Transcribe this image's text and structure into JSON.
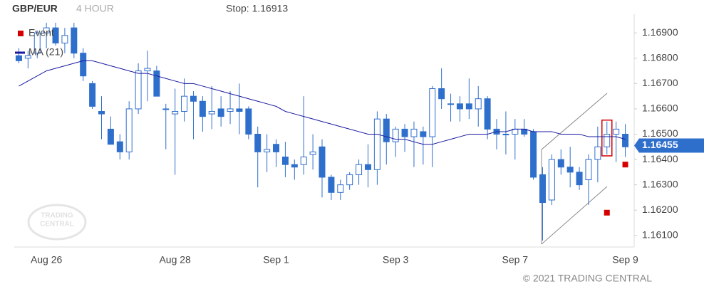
{
  "header": {
    "symbol": "GBP/EUR",
    "period": "4 HOUR",
    "stop": "Stop: 1.16913"
  },
  "footer": "© 2021 TRADING CENTRAL",
  "watermark": [
    "TRADING",
    "CENTRAL"
  ],
  "chart_data": {
    "type": "candlestick",
    "categories": [
      null,
      null,
      null,
      "Aug 26",
      null,
      null,
      null,
      null,
      null,
      null,
      null,
      null,
      null,
      null,
      null,
      null,
      null,
      "Aug 28",
      null,
      null,
      null,
      null,
      null,
      null,
      null,
      null,
      null,
      null,
      "Sep 1",
      null,
      null,
      null,
      null,
      null,
      null,
      null,
      null,
      null,
      null,
      null,
      null,
      "Sep 3",
      null,
      null,
      null,
      null,
      null,
      null,
      null,
      null,
      null,
      null,
      null,
      null,
      "Sep 7",
      null,
      null,
      null,
      null,
      null,
      null,
      null,
      null,
      null,
      null,
      null,
      "Sep 9"
    ],
    "open": [
      1.1681,
      1.168,
      1.1682,
      1.169,
      1.1692,
      1.1686,
      1.1692,
      1.1682,
      1.167,
      1.1659,
      1.1652,
      1.1647,
      1.1643,
      1.166,
      1.1675,
      1.1675,
      1.166,
      1.1658,
      1.1659,
      1.1665,
      1.1663,
      1.1658,
      1.166,
      1.1659,
      1.166,
      1.166,
      1.165,
      1.1643,
      1.1646,
      1.1641,
      1.1638,
      1.1638,
      1.1642,
      1.1645,
      1.1633,
      1.1627,
      1.163,
      1.1634,
      1.1638,
      1.1636,
      1.1656,
      1.1647,
      1.1652,
      1.1649,
      1.1651,
      1.1649,
      1.1668,
      1.1662,
      1.1662,
      1.1662,
      1.166,
      1.1664,
      1.1652,
      1.165,
      1.165,
      1.1652,
      1.1651,
      1.1634,
      1.1624,
      1.164,
      1.1637,
      1.1635,
      1.1632,
      1.164,
      1.1645,
      1.165,
      1.165
    ],
    "high": [
      1.1684,
      1.1683,
      1.1691,
      1.1694,
      1.1694,
      1.1692,
      1.1694,
      1.1684,
      1.1671,
      1.1665,
      1.1657,
      1.165,
      1.1663,
      1.1678,
      1.1683,
      1.1677,
      1.1662,
      1.1668,
      1.1672,
      1.1667,
      1.1665,
      1.1669,
      1.1665,
      1.1667,
      1.167,
      1.1661,
      1.1653,
      1.165,
      1.1648,
      1.1647,
      1.164,
      1.1665,
      1.165,
      1.1648,
      1.1634,
      1.1632,
      1.1635,
      1.164,
      1.1646,
      1.1659,
      1.1658,
      1.1653,
      1.1654,
      1.1655,
      1.1653,
      1.1669,
      1.1676,
      1.1666,
      1.1665,
      1.1672,
      1.1669,
      1.1665,
      1.1656,
      1.1659,
      1.1656,
      1.1656,
      1.1652,
      1.1637,
      1.1642,
      1.1644,
      1.1645,
      1.1637,
      1.1642,
      1.1653,
      1.1655,
      1.1655,
      1.1654
    ],
    "low": [
      1.1678,
      1.1676,
      1.168,
      1.1684,
      1.1685,
      1.1682,
      1.168,
      1.1671,
      1.166,
      1.1648,
      1.1646,
      1.164,
      1.164,
      1.1658,
      1.1663,
      1.1665,
      1.1644,
      1.1634,
      1.1655,
      1.1648,
      1.1651,
      1.1652,
      1.1653,
      1.1654,
      1.165,
      1.1648,
      1.1629,
      1.1635,
      1.1637,
      1.1633,
      1.1632,
      1.1634,
      1.1636,
      1.1625,
      1.1624,
      1.1624,
      1.1628,
      1.163,
      1.1629,
      1.163,
      1.1638,
      1.1641,
      1.1643,
      1.1637,
      1.1638,
      1.1637,
      1.166,
      1.1655,
      1.1655,
      1.1656,
      1.1653,
      1.1648,
      1.1644,
      1.1642,
      1.164,
      1.1649,
      1.1632,
      1.1608,
      1.1622,
      1.1634,
      1.1629,
      1.1628,
      1.1622,
      1.1631,
      1.1642,
      1.1639,
      1.1641
    ],
    "close": [
      1.1679,
      1.1681,
      1.169,
      1.1692,
      1.1686,
      1.1689,
      1.1682,
      1.1673,
      1.1661,
      1.1658,
      1.1646,
      1.1643,
      1.166,
      1.1675,
      1.1676,
      1.1665,
      1.166,
      1.1659,
      1.1665,
      1.1663,
      1.1657,
      1.1659,
      1.1657,
      1.166,
      1.1659,
      1.165,
      1.1643,
      1.1644,
      1.1643,
      1.1638,
      1.1637,
      1.1641,
      1.1643,
      1.1633,
      1.1627,
      1.163,
      1.1634,
      1.1638,
      1.1636,
      1.1656,
      1.1647,
      1.1652,
      1.1649,
      1.1652,
      1.1649,
      1.1668,
      1.1664,
      1.1662,
      1.166,
      1.166,
      1.1664,
      1.1652,
      1.165,
      1.165,
      1.1652,
      1.165,
      1.1633,
      1.1623,
      1.164,
      1.1637,
      1.1635,
      1.163,
      1.164,
      1.1645,
      1.165,
      1.1652,
      1.1645
    ],
    "up_color": "#ffffff",
    "down_color": "#2f6fcc",
    "candle_edge": "#2f6fcc",
    "series": [
      {
        "name": "Event",
        "color": "#d40000",
        "values": [
          null,
          null,
          null,
          null,
          null,
          null,
          null,
          null,
          null,
          null,
          null,
          null,
          null,
          null,
          null,
          null,
          null,
          null,
          null,
          null,
          null,
          null,
          null,
          null,
          null,
          null,
          null,
          null,
          null,
          null,
          null,
          null,
          null,
          null,
          null,
          null,
          null,
          null,
          null,
          null,
          null,
          null,
          null,
          null,
          null,
          null,
          null,
          null,
          null,
          null,
          null,
          null,
          null,
          null,
          null,
          null,
          null,
          null,
          null,
          null,
          null,
          null,
          null,
          null,
          1.1619,
          null,
          1.1638
        ]
      },
      {
        "name": "MA (21)",
        "color": "#1a1aa0",
        "values": [
          1.1669,
          1.1671,
          1.1673,
          1.1675,
          1.1676,
          1.1677,
          1.1678,
          1.1679,
          1.1679,
          1.1678,
          1.1677,
          1.1676,
          1.1675,
          1.1674,
          1.1674,
          1.1673,
          1.1672,
          1.1671,
          1.167,
          1.167,
          1.1669,
          1.1668,
          1.1667,
          1.1666,
          1.1665,
          1.1664,
          1.1663,
          1.1662,
          1.1661,
          1.1659,
          1.1658,
          1.1657,
          1.1656,
          1.1655,
          1.1654,
          1.1653,
          1.1652,
          1.1651,
          1.165,
          1.165,
          1.1649,
          1.1648,
          1.1648,
          1.1647,
          1.1646,
          1.1646,
          1.1647,
          1.1648,
          1.1649,
          1.165,
          1.165,
          1.165,
          1.1651,
          1.1651,
          1.1652,
          1.1652,
          1.1651,
          1.1651,
          1.1651,
          1.165,
          1.165,
          1.165,
          1.1649,
          1.1649,
          1.1649,
          1.1649,
          1.1648
        ]
      }
    ],
    "last_price": 1.16455,
    "last_price_color": "#2f6fcc",
    "ylim": [
      1.1606,
      1.1703
    ],
    "yticks": [
      {
        "value": 1.161,
        "label": "1.16100"
      },
      {
        "value": 1.162,
        "label": "1.16200"
      },
      {
        "value": 1.163,
        "label": "1.16300"
      },
      {
        "value": 1.164,
        "label": "1.16400"
      },
      {
        "value": 1.165,
        "label": "1.16500"
      },
      {
        "value": 1.166,
        "label": "1.16600"
      },
      {
        "value": 1.167,
        "label": "1.16700"
      },
      {
        "value": 1.168,
        "label": "1.16800"
      },
      {
        "value": 1.169,
        "label": "1.16900"
      }
    ],
    "grid": false,
    "legend": "top-left"
  }
}
